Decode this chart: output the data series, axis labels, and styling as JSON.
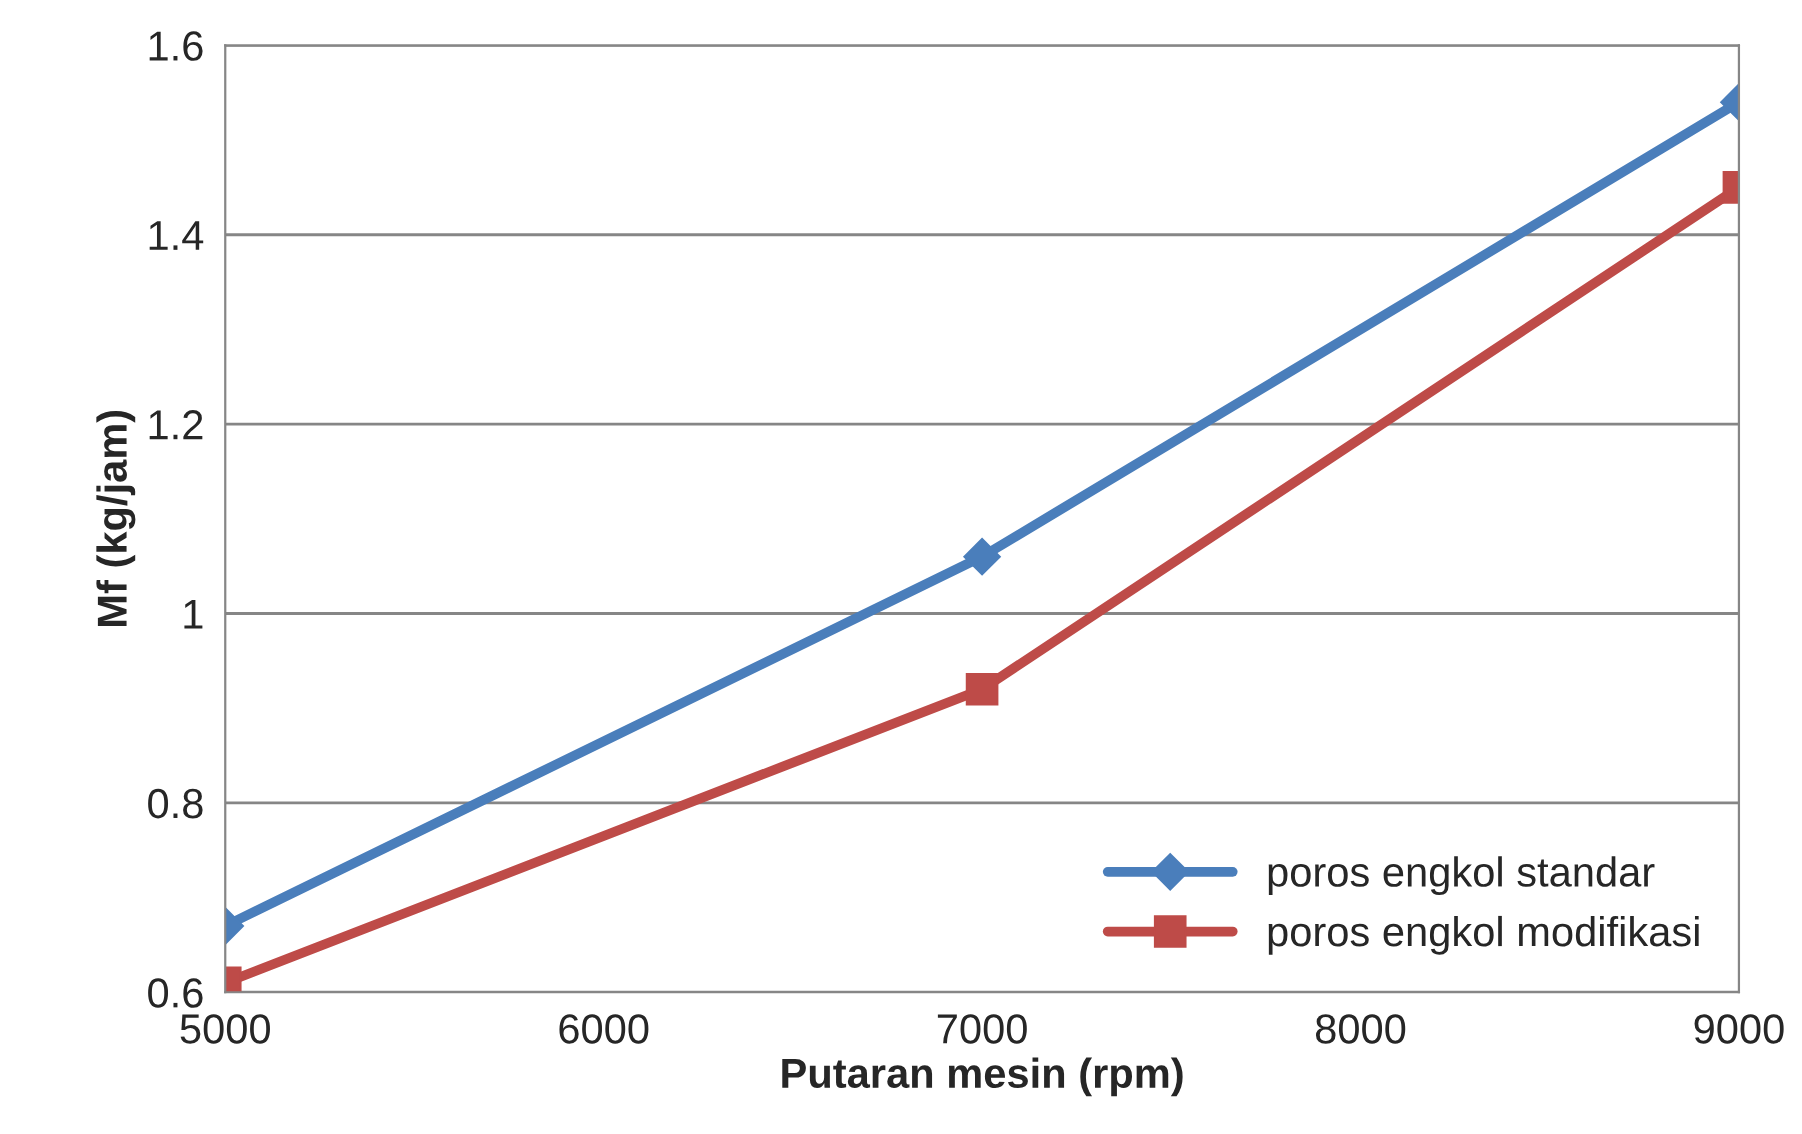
{
  "chart_data": {
    "type": "line",
    "xlabel": "Putaran mesin (rpm)",
    "ylabel": "Mf (kg/jam)",
    "x": [
      5000,
      7000,
      9000
    ],
    "series": [
      {
        "name": "poros engkol standar",
        "color": "#4a7ebb",
        "marker": "diamond",
        "values": [
          0.67,
          1.06,
          1.54
        ]
      },
      {
        "name": "poros engkol modifikasi",
        "color": "#be4b48",
        "marker": "square",
        "values": [
          0.61,
          0.92,
          1.45
        ]
      }
    ],
    "xlim": [
      5000,
      9000
    ],
    "xticks": [
      5000,
      6000,
      7000,
      8000,
      9000
    ],
    "ylim": [
      0.6,
      1.6
    ],
    "yticks": [
      0.6,
      0.8,
      1,
      1.2,
      1.4,
      1.6
    ],
    "grid": "y",
    "legend": "bottom right"
  }
}
